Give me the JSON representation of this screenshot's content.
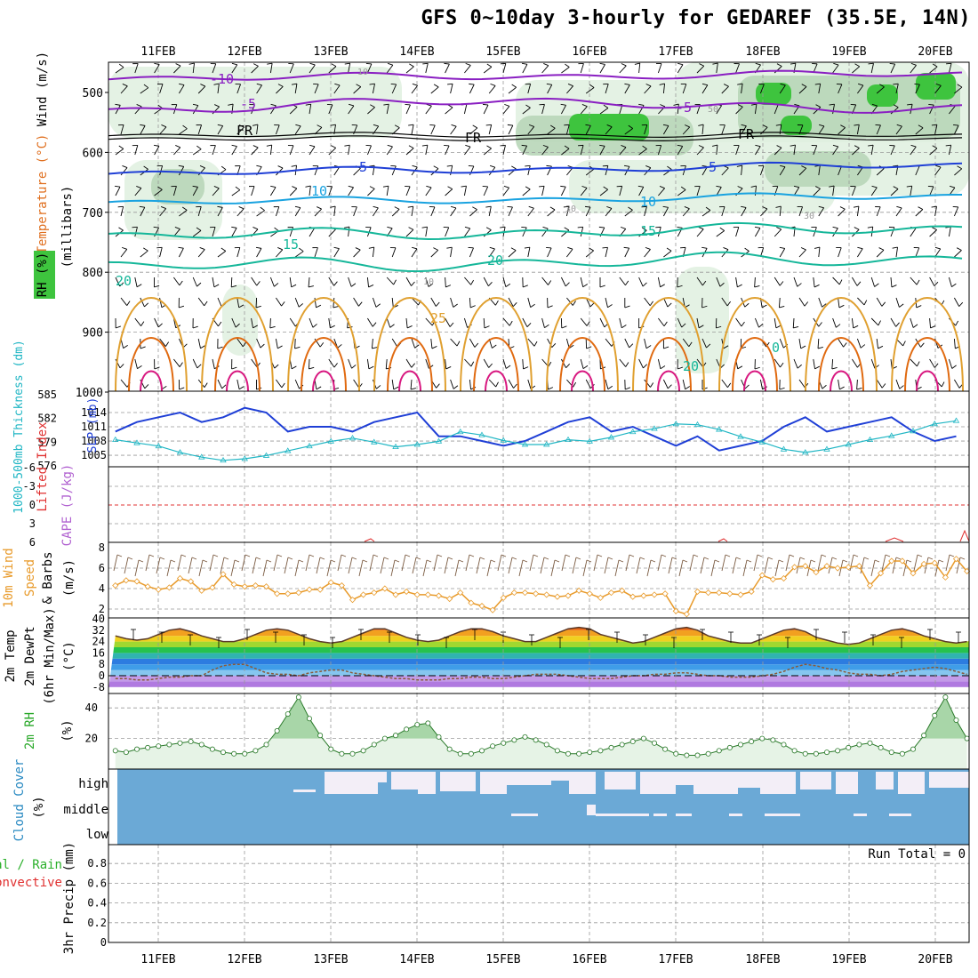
{
  "title": "GFS 0~10day 3-hourly for GEDAREF (35.5E, 14N)",
  "colors": {
    "purple": "#8a1fc2",
    "blue": "#1f3fd6",
    "cyan": "#1aa3e0",
    "teal": "#16b79a",
    "orange": "#e0a030",
    "darkorange": "#e06a10",
    "magenta": "#d81880",
    "rh_green": "#3ec43e",
    "cloud_blue": "#6ba9d6",
    "grid": "#999999",
    "li_red": "#e03030",
    "cape_violet": "#b060d0",
    "wind_orange": "#e89a2a"
  },
  "days": [
    "11FEB",
    "12FEB",
    "13FEB",
    "14FEB",
    "15FEB",
    "16FEB",
    "17FEB",
    "18FEB",
    "19FEB",
    "20FEB"
  ],
  "panels": {
    "upper": {
      "ylabel_wind": "Wind (m/s)",
      "ylabel_temp": "Temperature (°C)",
      "ylabel_rh": "RH (%)",
      "ylabel_axis": "(millibars)",
      "yticks": [
        "500",
        "600",
        "700",
        "800",
        "900",
        "1000"
      ],
      "contour_labels": {
        "m10": "-10",
        "m5": "-5",
        "fr": "FR",
        "p5": "5",
        "p10": "10",
        "p15": "15",
        "p20": "20",
        "p25": "25",
        "p0": "0",
        "rh10": "10",
        "rh30": "30",
        "rh50": "50"
      }
    },
    "slp": {
      "ylabel_thick": "1000-500mb Thickness (dm)",
      "ylabel_slp": "SLP (mb)",
      "thick_ticks": [
        "585",
        "582",
        "579",
        "576"
      ],
      "slp_ticks": [
        "1014",
        "1011",
        "1008",
        "1005"
      ]
    },
    "li": {
      "ylabel_li": "Lifted Index",
      "ylabel_cape": "CAPE (J/kg)",
      "yticks": [
        "-6",
        "-3",
        "0",
        "3",
        "6"
      ]
    },
    "wind": {
      "ylabel_a": "10m Wind",
      "ylabel_b": "Speed",
      "ylabel_c": "& Barbs",
      "ylabel_unit": "(m/s)",
      "yticks": [
        "8",
        "6",
        "4",
        "2"
      ]
    },
    "temp": {
      "ylabel_a": "2m Temp",
      "ylabel_b": "2m DewPt",
      "ylabel_c": "(6hr Min/Max)",
      "ylabel_unit": "(°C)",
      "yticks": [
        "40",
        "32",
        "24",
        "16",
        "8",
        "0",
        "-8"
      ]
    },
    "rh": {
      "ylabel": "2m RH",
      "ylabel_unit": "(%)",
      "yticks": [
        "40",
        "20"
      ]
    },
    "cloud": {
      "ylabel": "Cloud Cover",
      "ylabel_unit": "(%)",
      "levels": [
        "high",
        "middle",
        "low"
      ]
    },
    "precip": {
      "ylabel_a": "Total / Rain",
      "ylabel_b": "Convective",
      "ylabel_c": "3hr Precip (mm)",
      "yticks": [
        "0.8",
        "0.6",
        "0.4",
        "0.2",
        "0"
      ],
      "run_total": "Run Total = 0"
    }
  },
  "chart_data": [
    {
      "type": "line",
      "panel": "sea level pressure and 1000-500mb thickness",
      "x_start": "10FEB 18Z",
      "x_step_hours": 6,
      "series": [
        {
          "name": "SLP (mb)",
          "values": [
            1010,
            1012,
            1013,
            1014,
            1012,
            1013,
            1015,
            1014,
            1010,
            1011,
            1011,
            1010,
            1012,
            1013,
            1014,
            1009,
            1009,
            1008,
            1007,
            1008,
            1010,
            1012,
            1013,
            1010,
            1011,
            1009,
            1007,
            1009,
            1006,
            1007,
            1008,
            1011,
            1013,
            1010,
            1011,
            1012,
            1013,
            1010,
            1008,
            1009,
            1011,
            1012,
            1013,
            1011,
            1012,
            1010,
            1011,
            1013,
            1015,
            1012,
            1006,
            1006,
            1008,
            1010,
            1012,
            1010,
            1008,
            1009,
            1010,
            1012,
            1013,
            1012,
            1006,
            1007,
            1009,
            1012,
            1013,
            1015,
            1012,
            1014,
            1013,
            1008,
            1006,
            1008,
            1009,
            1011,
            1013,
            1014,
            1012,
            1010,
            1012,
            1014,
            1010,
            1007,
            1009,
            1011,
            1012,
            1013,
            1014,
            1010,
            1009,
            1007,
            1008,
            1009,
            1012,
            1006,
            1005,
            1008,
            1010,
            1011,
            1008,
            1010
          ]
        },
        {
          "name": "1000-500mb Thickness (dm)",
          "values": [
            579.2,
            578.8,
            578.4,
            577.6,
            577.0,
            576.6,
            576.8,
            577.2,
            577.8,
            578.4,
            579.0,
            579.4,
            578.9,
            578.3,
            578.6,
            579.0,
            580.2,
            579.8,
            579.1,
            578.6,
            578.6,
            579.2,
            579.0,
            579.5,
            580.2,
            580.6,
            581.2,
            581.1,
            580.5,
            579.6,
            578.9,
            578.0,
            577.6,
            578.0,
            578.6,
            579.2,
            579.7,
            580.3,
            581.2,
            581.6,
            581.5,
            580.6,
            579.8,
            578.9,
            578.7,
            577.9,
            577.6,
            578.2,
            579.1,
            579.7,
            580.5,
            581.3,
            581.8,
            581.8,
            581.0,
            580.2,
            579.0,
            578.5,
            577.7,
            577.2,
            576.9,
            576.8,
            577.3,
            577.8,
            578.4,
            579.2,
            579.5,
            580.3,
            581.0,
            581.5,
            581.6,
            580.8,
            580.2,
            579.7,
            579.5,
            579.2,
            579.1,
            578.8,
            579.4,
            580.5,
            581.0,
            581.6,
            582.0,
            582.6,
            583.0,
            582.8,
            582.6,
            582.6,
            581.8,
            580.8,
            579.9,
            579.7,
            580.0,
            580.9,
            581.6,
            582.2,
            582.9,
            583.4,
            582.6,
            582.6,
            583.1,
            582.5
          ]
        }
      ]
    },
    {
      "type": "line",
      "panel": "10m wind speed (m/s)",
      "x_start": "10FEB 18Z",
      "x_step_hours": 3,
      "values": [
        4.3,
        4.8,
        4.7,
        4.2,
        3.9,
        4.1,
        5.0,
        4.7,
        3.8,
        4.1,
        5.4,
        4.4,
        4.2,
        4.3,
        4.2,
        3.5,
        3.5,
        3.6,
        3.9,
        3.9,
        4.6,
        4.3,
        2.9,
        3.4,
        3.6,
        4.0,
        3.4,
        3.7,
        3.4,
        3.4,
        3.3,
        3.0,
        3.6,
        2.6,
        2.3,
        1.9,
        3.1,
        3.6,
        3.6,
        3.5,
        3.4,
        3.2,
        3.3,
        3.8,
        3.5,
        3.1,
        3.6,
        3.8,
        3.2,
        3.3,
        3.4,
        3.5,
        1.8,
        1.5,
        3.7,
        3.6,
        3.6,
        3.5,
        3.4,
        3.7,
        5.3,
        4.9,
        5.0,
        6.1,
        6.2,
        5.6,
        6.2,
        6.0,
        6.1,
        6.2,
        4.3,
        5.5,
        6.7,
        6.7,
        5.5,
        6.4,
        6.5,
        5.1,
        6.9,
        5.7,
        7.0,
        5.9,
        6.3,
        4.9,
        4.3,
        4.6,
        4.7,
        5.0,
        5.1,
        5.1,
        5.2,
        4.9,
        4.3,
        5.3,
        5.0,
        4.7,
        4.3,
        4.7,
        4.9,
        4.7,
        5.6,
        6.1,
        5.2,
        4.9,
        4.1,
        4.3,
        4.9,
        5.5,
        4.9,
        4.0,
        4.2,
        5.1,
        5.2,
        4.1,
        4.5,
        5.2,
        4.8,
        4.3,
        4.4,
        4.2,
        5.0,
        5.3,
        5.0,
        4.2,
        4.9,
        5.0,
        5.0,
        4.2,
        3.9,
        4.5,
        5.0,
        5.2,
        5.0,
        4.8,
        4.6,
        4.4,
        4.5,
        5.1,
        5.4,
        5.2,
        4.8,
        5.0,
        5.3,
        5.4,
        5.2,
        4.8,
        4.5,
        4.2,
        4.6,
        5.0,
        5.5,
        5.1,
        5.4,
        5.2,
        5.3,
        5.8,
        6.1,
        6.4,
        6.0,
        5.6,
        5.8,
        6.1,
        6.4,
        6.1,
        5.9,
        5.8,
        5.5,
        5.0,
        4.9,
        5.2,
        5.4,
        5.1,
        5.3,
        5.6,
        5.9,
        6.1,
        5.7,
        5.2,
        5.0,
        4.7,
        4.4,
        4.6,
        4.7,
        4.5,
        4.4,
        4.3,
        4.5,
        4.8,
        5.2,
        5.0,
        5.2,
        5.1,
        4.8,
        4.6,
        4.9,
        5.3,
        5.4,
        5.0,
        4.9,
        5.2,
        5.1,
        4.9,
        4.6,
        4.3,
        4.6,
        4.9,
        5.3,
        5.1,
        4.8,
        4.5,
        4.5,
        5.0,
        5.1,
        5.3
      ]
    },
    {
      "type": "area",
      "panel": "2m temperature (°C)",
      "x_start": "10FEB 18Z",
      "x_step_hours": 3,
      "values": [
        28,
        26,
        25,
        26,
        29,
        32,
        33,
        31,
        28,
        26,
        24,
        24,
        26,
        29,
        32,
        33,
        32,
        29,
        26,
        24,
        23,
        24,
        27,
        30,
        33,
        33,
        30,
        27,
        25,
        24,
        25,
        28,
        31,
        33,
        33,
        31,
        28,
        26,
        24,
        24,
        27,
        30,
        33,
        34,
        33,
        29,
        27,
        25,
        23,
        24,
        27,
        30,
        33,
        34,
        32,
        28,
        26,
        24,
        23,
        23,
        26,
        29,
        32,
        33,
        31,
        27,
        25,
        23,
        22,
        23,
        26,
        29,
        32,
        33,
        31,
        28,
        26,
        24,
        23,
        24,
        27,
        30,
        33,
        33,
        31,
        28,
        26,
        24,
        23,
        24,
        27,
        30,
        33,
        34,
        31,
        28,
        26,
        24,
        24,
        25,
        28,
        31,
        33,
        33,
        31,
        28,
        26,
        24,
        24,
        27,
        30
      ]
    },
    {
      "type": "line",
      "panel": "2m dew point (°C)",
      "x_start": "10FEB 18Z",
      "x_step_hours": 3,
      "values": [
        -2,
        -2,
        -3,
        -3,
        -2,
        -1,
        -1,
        0,
        0,
        4,
        7,
        8,
        8,
        5,
        2,
        1,
        1,
        0,
        2,
        3,
        4,
        4,
        2,
        1,
        0,
        -1,
        -2,
        -2,
        -3,
        -3,
        -3,
        -2,
        -2,
        -1,
        -1,
        -2,
        -2,
        -1,
        0,
        1,
        1,
        1,
        0,
        -1,
        -2,
        -2,
        -2,
        -1,
        0,
        0,
        1,
        1,
        2,
        2,
        1,
        0,
        0,
        -1,
        -1,
        -1,
        0,
        1,
        3,
        6,
        8,
        7,
        5,
        4,
        2,
        1,
        1,
        0,
        1,
        3,
        4,
        5,
        6,
        5,
        3,
        1,
        0,
        0,
        1,
        3,
        4,
        4,
        3,
        2,
        2,
        3,
        4,
        5,
        6,
        6,
        5,
        4,
        3,
        2,
        3,
        4,
        5
      ]
    },
    {
      "type": "area",
      "panel": "2m relative humidity (%)",
      "x_start": "10FEB 18Z",
      "x_step_hours": 3,
      "values": [
        12,
        11,
        13,
        14,
        15,
        16,
        17,
        18,
        16,
        13,
        11,
        10,
        10,
        12,
        16,
        25,
        36,
        47,
        33,
        22,
        13,
        10,
        10,
        12,
        16,
        20,
        22,
        26,
        29,
        30,
        21,
        13,
        10,
        10,
        12,
        15,
        17,
        19,
        21,
        19,
        16,
        12,
        10,
        10,
        11,
        12,
        14,
        16,
        18,
        20,
        17,
        13,
        10,
        9,
        9,
        10,
        12,
        14,
        16,
        18,
        20,
        19,
        16,
        12,
        10,
        10,
        11,
        12,
        14,
        16,
        17,
        14,
        11,
        10,
        13,
        22,
        35,
        47,
        32,
        20,
        16,
        16,
        18,
        22,
        28,
        35,
        39,
        34,
        22,
        13,
        10,
        10,
        12,
        16,
        22,
        28,
        35,
        38,
        32,
        22,
        14,
        10,
        11,
        13,
        16,
        20,
        25,
        33,
        29
      ]
    }
  ]
}
